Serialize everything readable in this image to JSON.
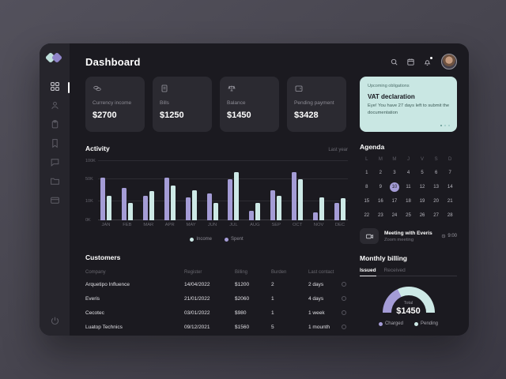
{
  "colors": {
    "accent_purple": "#a49cd6",
    "accent_mint": "#cde9e6",
    "obligation_bg": "#c9e7e3"
  },
  "header": {
    "title": "Dashboard",
    "icons": [
      "search-icon",
      "calendar-icon",
      "bell-icon"
    ],
    "has_notification": true
  },
  "sidebar": {
    "items": [
      {
        "id": "dashboard",
        "icon": "grid-icon",
        "active": true
      },
      {
        "id": "contacts",
        "icon": "user-icon",
        "active": false
      },
      {
        "id": "tasks",
        "icon": "clipboard-icon",
        "active": false
      },
      {
        "id": "bookmarks",
        "icon": "bookmark-icon",
        "active": false
      },
      {
        "id": "messages",
        "icon": "chat-icon",
        "active": false
      },
      {
        "id": "files",
        "icon": "folder-icon",
        "active": false
      },
      {
        "id": "payments",
        "icon": "card-icon",
        "active": false
      }
    ],
    "power_icon": "power-icon"
  },
  "stats": [
    {
      "label": "Currency income",
      "value": "$2700",
      "icon": "coins-icon"
    },
    {
      "label": "Bills",
      "value": "$1250",
      "icon": "bill-icon"
    },
    {
      "label": "Balance",
      "value": "$1450",
      "icon": "scale-icon"
    },
    {
      "label": "Pending payment",
      "value": "$3428",
      "icon": "wallet-icon"
    }
  ],
  "obligations": {
    "header": "Upcoming obligations",
    "title": "VAT declaration",
    "body": "Eye! You have 27 days left to submit the documentation",
    "dots": 3,
    "active_dot": 0
  },
  "activity": {
    "title": "Activity",
    "filter": "Last year",
    "legend": [
      {
        "label": "Income",
        "color": "#cde9e6"
      },
      {
        "label": "Spent",
        "color": "#a49cd6"
      }
    ]
  },
  "chart_data": {
    "type": "bar",
    "title": "Activity",
    "categories": [
      "JAN",
      "FEB",
      "MAR",
      "APR",
      "MAY",
      "JUN",
      "JUL",
      "AUG",
      "SEP",
      "OCT",
      "NOV",
      "DEC"
    ],
    "series": [
      {
        "name": "Spent",
        "color": "#a49cd6",
        "values": [
          55,
          35,
          20,
          55,
          17,
          24,
          50,
          5,
          30,
          70,
          4,
          9
        ]
      },
      {
        "name": "Income",
        "color": "#cde9e6",
        "values": [
          20,
          9,
          29,
          38,
          30,
          9,
          70,
          9,
          20,
          50,
          17,
          16
        ]
      }
    ],
    "unit": "K",
    "ylim": [
      0,
      100
    ],
    "y_ticks": [
      {
        "label": "0K",
        "value": 0
      },
      {
        "label": "10K",
        "value": 10
      },
      {
        "label": "50K",
        "value": 50
      },
      {
        "label": "100K",
        "value": 100
      }
    ],
    "grid": true,
    "legend_position": "bottom"
  },
  "agenda": {
    "title": "Agenda",
    "day_headers": [
      "L",
      "M",
      "M",
      "J",
      "V",
      "S",
      "D"
    ],
    "days": [
      1,
      2,
      3,
      4,
      5,
      6,
      7,
      8,
      9,
      10,
      11,
      12,
      13,
      14,
      15,
      16,
      17,
      18,
      19,
      20,
      21,
      22,
      23,
      24,
      25,
      26,
      27,
      28
    ],
    "selected_day": 10,
    "meeting": {
      "icon": "video-icon",
      "title": "Meeting with Everis",
      "subtitle": "Zoom meeting",
      "time": "9:00"
    }
  },
  "customers": {
    "title": "Customers",
    "columns": [
      "Company",
      "Register",
      "Billing",
      "Burden",
      "Last contact"
    ],
    "rows": [
      {
        "company": "Arquetipo Influence",
        "register": "14/04/2022",
        "billing": "$1200",
        "burden": "2",
        "last_contact": "2 days"
      },
      {
        "company": "Everis",
        "register": "21/01/2022",
        "billing": "$2060",
        "burden": "1",
        "last_contact": "4 days"
      },
      {
        "company": "Cecotec",
        "register": "03/01/2022",
        "billing": "$980",
        "burden": "1",
        "last_contact": "1 week"
      },
      {
        "company": "Luatop Technics",
        "register": "09/12/2021",
        "billing": "$1560",
        "burden": "5",
        "last_contact": "1 mounth"
      }
    ]
  },
  "billing": {
    "title": "Monthly billing",
    "tabs": [
      "Issued",
      "Received"
    ],
    "active_tab": "Issued",
    "total_label": "Total",
    "total": "$1450",
    "gauge": {
      "type": "gauge",
      "charged_ratio": 0.36
    },
    "legend": [
      {
        "label": "Charged",
        "color": "#a49cd6"
      },
      {
        "label": "Pending",
        "color": "#cde9e6"
      }
    ]
  }
}
